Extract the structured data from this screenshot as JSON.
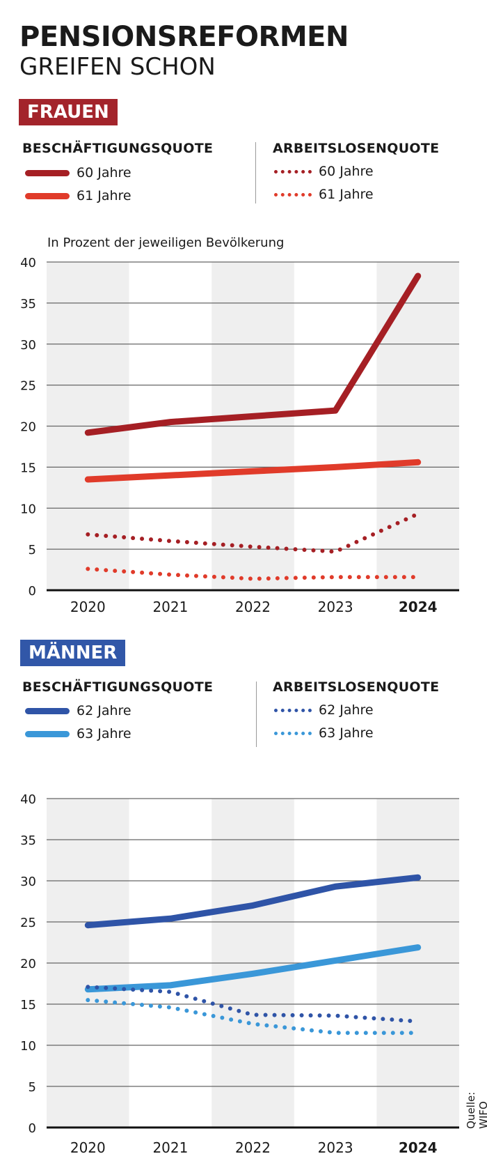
{
  "title": {
    "line1": "PENSIONSREFORMEN",
    "line2": "GREIFEN SCHON"
  },
  "source": "Quelle: WIFO",
  "colors": {
    "women_badge": "#a3242b",
    "men_badge": "#3157a8",
    "grid_band": "#efefef"
  },
  "women": {
    "badge": "FRAUEN",
    "legend": {
      "employment_heading": "BESCHÄFTIGUNGSQUOTE",
      "unemployment_heading": "ARBEITSLOSENQUOTE",
      "employment": [
        {
          "label": "60 Jahre",
          "color": "#a51f24"
        },
        {
          "label": "61 Jahre",
          "color": "#e03b2a"
        }
      ],
      "unemployment": [
        {
          "label": "60 Jahre",
          "color": "#a51f24"
        },
        {
          "label": "61 Jahre",
          "color": "#e03b2a"
        }
      ]
    },
    "subtitle": "In Prozent der jeweiligen Bevölkerung"
  },
  "men": {
    "badge": "MÄNNER",
    "legend": {
      "employment_heading": "BESCHÄFTIGUNGSQUOTE",
      "unemployment_heading": "ARBEITSLOSENQUOTE",
      "employment": [
        {
          "label": "62 Jahre",
          "color": "#2f54a7"
        },
        {
          "label": "63 Jahre",
          "color": "#3a97d8"
        }
      ],
      "unemployment": [
        {
          "label": "62 Jahre",
          "color": "#2f54a7"
        },
        {
          "label": "63 Jahre",
          "color": "#3a97d8"
        }
      ]
    }
  },
  "chart_data": [
    {
      "type": "line",
      "title": "FRAUEN",
      "ylabel": "In Prozent der jeweiligen Bevölkerung",
      "ylim": [
        0,
        40
      ],
      "yticks": [
        "0",
        "5",
        "10",
        "15",
        "20",
        "25",
        "30",
        "35",
        "40"
      ],
      "categories": [
        "2020",
        "2021",
        "2022",
        "2023",
        "2024"
      ],
      "bold_category": "2024",
      "grid": true,
      "series": [
        {
          "name": "Beschäftigungsquote 60 Jahre",
          "style": "solid",
          "color": "#a51f24",
          "values": [
            19.2,
            20.5,
            21.2,
            21.9,
            38.3
          ]
        },
        {
          "name": "Beschäftigungsquote 61 Jahre",
          "style": "solid",
          "color": "#e03b2a",
          "values": [
            13.5,
            14.0,
            14.5,
            15.0,
            15.6
          ]
        },
        {
          "name": "Arbeitslosenquote 60 Jahre",
          "style": "dotted",
          "color": "#a51f24",
          "values": [
            6.8,
            6.0,
            5.3,
            4.7,
            9.3
          ]
        },
        {
          "name": "Arbeitslosenquote 61 Jahre",
          "style": "dotted",
          "color": "#e03b2a",
          "values": [
            2.6,
            1.9,
            1.4,
            1.6,
            1.6
          ]
        }
      ]
    },
    {
      "type": "line",
      "title": "MÄNNER",
      "ylim": [
        0,
        40
      ],
      "yticks": [
        "0",
        "5",
        "10",
        "15",
        "20",
        "25",
        "30",
        "35",
        "40"
      ],
      "categories": [
        "2020",
        "2021",
        "2022",
        "2023",
        "2024"
      ],
      "bold_category": "2024",
      "grid": true,
      "series": [
        {
          "name": "Beschäftigungsquote 62 Jahre",
          "style": "solid",
          "color": "#2f54a7",
          "values": [
            24.6,
            25.4,
            27.0,
            29.3,
            30.4
          ]
        },
        {
          "name": "Beschäftigungsquote 63 Jahre",
          "style": "solid",
          "color": "#3a97d8",
          "values": [
            16.8,
            17.3,
            18.7,
            20.3,
            21.9
          ]
        },
        {
          "name": "Arbeitslosenquote 62 Jahre",
          "style": "dotted",
          "color": "#2f54a7",
          "values": [
            17.1,
            16.5,
            13.7,
            13.6,
            12.9
          ]
        },
        {
          "name": "Arbeitslosenquote 63 Jahre",
          "style": "dotted",
          "color": "#3a97d8",
          "values": [
            15.5,
            14.6,
            12.6,
            11.5,
            11.5
          ]
        }
      ]
    }
  ]
}
